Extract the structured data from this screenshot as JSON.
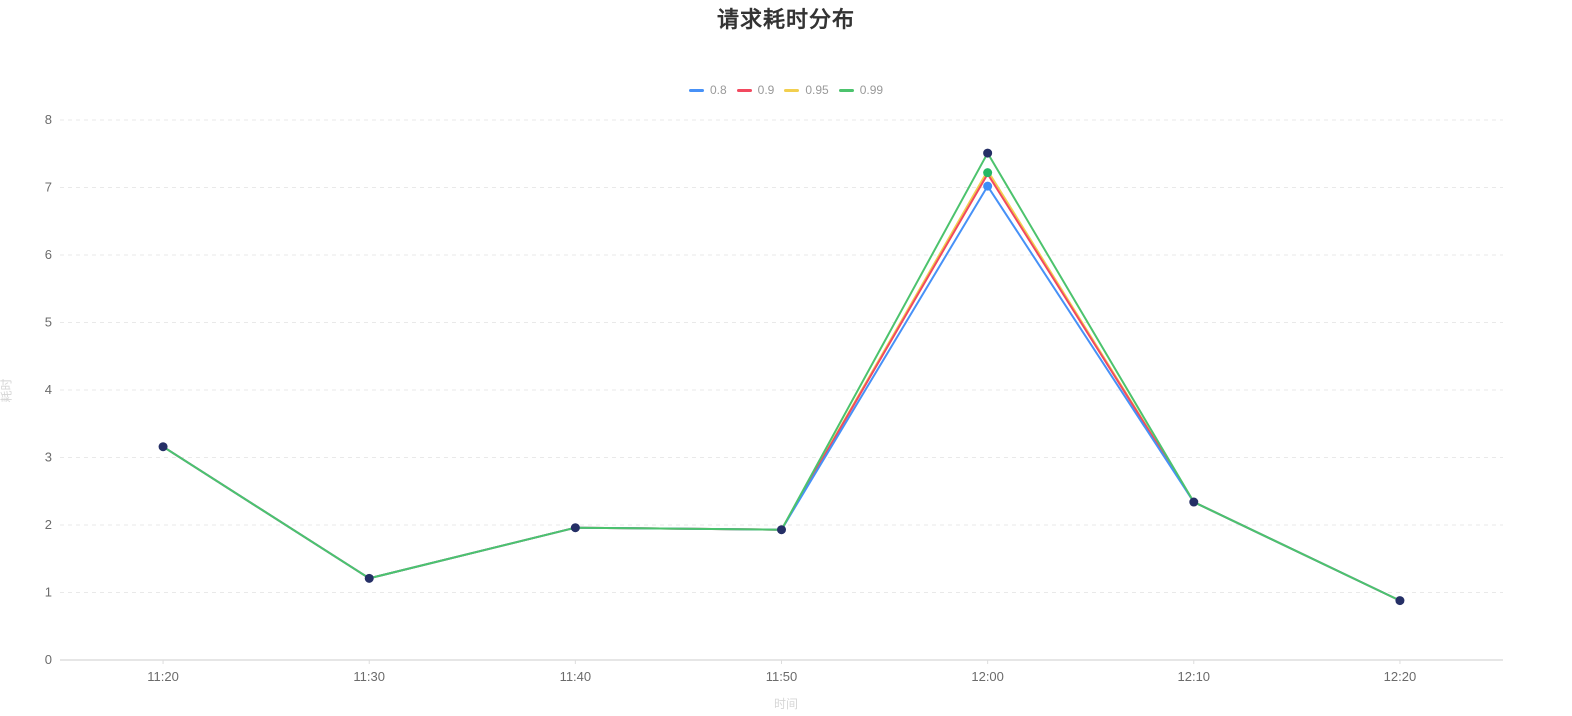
{
  "chart_data": {
    "type": "line",
    "title": "请求耗时分布",
    "xlabel": "时间",
    "ylabel": "耗时",
    "categories": [
      "11:20",
      "11:30",
      "11:40",
      "11:50",
      "12:00",
      "12:10",
      "12:20"
    ],
    "series": [
      {
        "name": "0.8",
        "color": "#4791f7",
        "values": [
          3.16,
          1.21,
          1.96,
          1.93,
          7.02,
          2.34,
          0.88
        ]
      },
      {
        "name": "0.9",
        "color": "#f2495f",
        "values": [
          3.16,
          1.21,
          1.96,
          1.93,
          7.2,
          2.34,
          0.88
        ]
      },
      {
        "name": "0.95",
        "color": "#f2cf4f",
        "values": [
          3.16,
          1.21,
          1.96,
          1.93,
          7.25,
          2.34,
          0.88
        ]
      },
      {
        "name": "0.99",
        "color": "#4cc36d",
        "values": [
          3.16,
          1.21,
          1.96,
          1.93,
          7.51,
          2.34,
          0.88
        ]
      }
    ],
    "draw_order": [
      2,
      1,
      0,
      3
    ],
    "markers": [
      {
        "x": 0,
        "value": 3.16,
        "color": "#252f66"
      },
      {
        "x": 1,
        "value": 1.21,
        "color": "#252f66"
      },
      {
        "x": 2,
        "value": 1.96,
        "color": "#252f66"
      },
      {
        "x": 3,
        "value": 1.93,
        "color": "#252f66"
      },
      {
        "x": 4,
        "value": 7.51,
        "color": "#252f66"
      },
      {
        "x": 4,
        "value": 7.22,
        "color": "#25b864"
      },
      {
        "x": 4,
        "value": 7.02,
        "color": "#3d8ef7"
      },
      {
        "x": 5,
        "value": 2.34,
        "color": "#252f66"
      },
      {
        "x": 6,
        "value": 0.88,
        "color": "#252f66"
      }
    ],
    "ylim": [
      0,
      8
    ],
    "yticks": [
      0,
      1,
      2,
      3,
      4,
      5,
      6,
      7,
      8
    ],
    "grid": true,
    "legend_position": "top-center",
    "colors": {
      "title": "#333333",
      "axis_line": "#cccccc",
      "grid_line": "#e9e9e9",
      "tick_label": "#6b6b6b",
      "legend_text": "#999999",
      "axis_name": "#d6d6d6"
    }
  }
}
